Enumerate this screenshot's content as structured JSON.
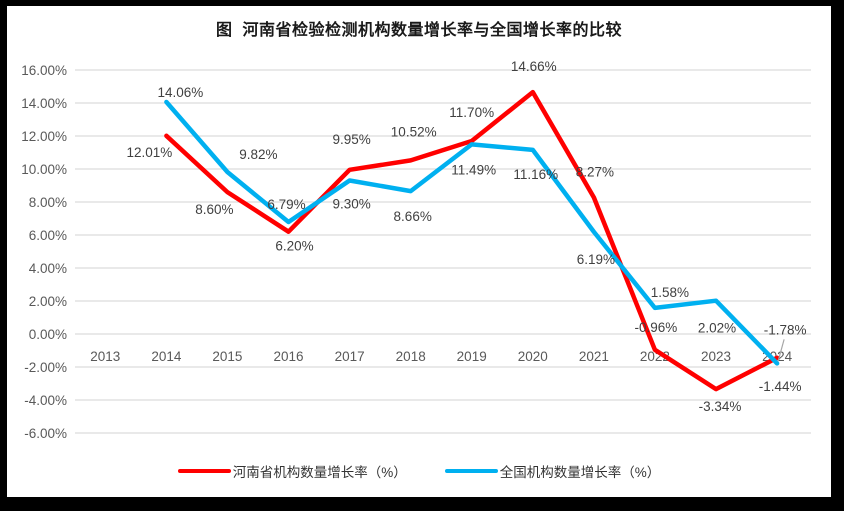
{
  "page": {
    "background": "#000000",
    "panel_background": "#FFFFFF"
  },
  "colors": {
    "grid": "#DCDCDC",
    "axis_text": "#595959",
    "data_label_text": "#404040",
    "leader_line": "#A6A6A6",
    "title_text": "#1A1A1A"
  },
  "chart_data": {
    "type": "line",
    "title": "图  河南省检验检测机构数量增长率与全国增长率的比较",
    "categories": [
      "2013",
      "2014",
      "2015",
      "2016",
      "2017",
      "2018",
      "2019",
      "2020",
      "2021",
      "2022",
      "2023",
      "2024"
    ],
    "y_ticks": [
      16,
      14,
      12,
      10,
      8,
      6,
      4,
      2,
      0,
      -2,
      -4,
      -6
    ],
    "y_tick_labels": [
      "16.00%",
      "14.00%",
      "12.00%",
      "10.00%",
      "8.00%",
      "6.00%",
      "4.00%",
      "2.00%",
      "0.00%",
      "-2.00%",
      "-4.00%",
      "-6.00%"
    ],
    "ylim": [
      -6,
      16
    ],
    "grid": true,
    "legend_position": "bottom",
    "label_format": "percent_2dp",
    "series": [
      {
        "name": "河南省机构数量增长率（%）",
        "color": "#FF0000",
        "start_category": "2014",
        "values": [
          12.01,
          8.6,
          6.2,
          9.95,
          10.52,
          11.7,
          14.66,
          8.27,
          -0.96,
          -3.34,
          -1.44
        ],
        "label_offsets": [
          [
            -17,
            16
          ],
          [
            -13,
            17
          ],
          [
            6,
            14
          ],
          [
            2,
            -31
          ],
          [
            3,
            -29
          ],
          [
            0,
            -29
          ],
          [
            1,
            -26
          ],
          [
            1,
            -26
          ],
          [
            1,
            -23
          ],
          [
            4,
            17
          ],
          [
            3,
            28
          ]
        ]
      },
      {
        "name": "全国机构数量增长率（%）",
        "color": "#00B0F0",
        "start_category": "2014",
        "values": [
          14.06,
          9.82,
          6.79,
          9.3,
          8.66,
          11.49,
          11.16,
          6.19,
          1.58,
          2.02,
          -1.78
        ],
        "label_offsets": [
          [
            14,
            -10
          ],
          [
            31,
            -18
          ],
          [
            -2,
            -18
          ],
          [
            2,
            23
          ],
          [
            2,
            25
          ],
          [
            2,
            25
          ],
          [
            3,
            24
          ],
          [
            2,
            27
          ],
          [
            15,
            -16
          ],
          [
            1,
            27
          ],
          [
            8,
            -34
          ]
        ]
      }
    ],
    "leader_line_point": {
      "series": 1,
      "index": 10
    }
  }
}
